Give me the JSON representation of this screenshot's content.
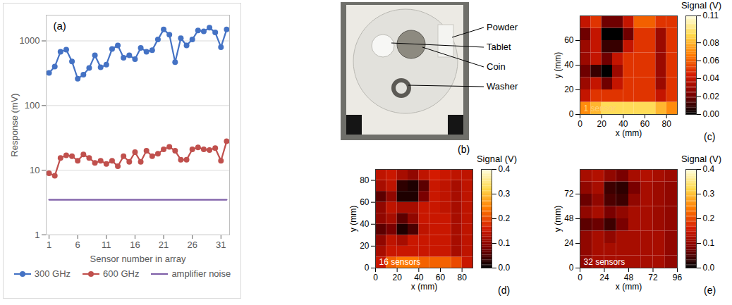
{
  "chart_data": [
    {
      "type": "line",
      "panel": "(a)",
      "xlabel": "Sensor number in array",
      "ylabel": "Response (mV)",
      "log": "y",
      "grid": true,
      "legend": "bottom",
      "x": [
        1,
        2,
        3,
        4,
        5,
        6,
        7,
        8,
        9,
        10,
        11,
        12,
        13,
        14,
        15,
        16,
        17,
        18,
        19,
        20,
        21,
        22,
        23,
        24,
        25,
        26,
        27,
        28,
        29,
        30,
        31,
        32
      ],
      "xlim": [
        0.5,
        32.5
      ],
      "xticks": [
        1,
        6,
        11,
        16,
        21,
        26,
        31
      ],
      "ylim": [
        1,
        2500
      ],
      "yticks": [
        1,
        10,
        100,
        1000
      ],
      "series": [
        {
          "name": "300 GHz",
          "color": "#4472c4",
          "marker": "circle",
          "line_style": "solid",
          "values": [
            320,
            400,
            680,
            730,
            480,
            260,
            300,
            380,
            600,
            390,
            430,
            750,
            850,
            550,
            600,
            520,
            780,
            680,
            720,
            1050,
            1500,
            1250,
            470,
            1100,
            850,
            1050,
            1450,
            1400,
            1600,
            1350,
            800,
            1500
          ]
        },
        {
          "name": "600 GHz",
          "color": "#c0504d",
          "marker": "circle",
          "line_style": "solid",
          "values": [
            9,
            8.2,
            15.5,
            17,
            16.5,
            14,
            17.5,
            15.5,
            13,
            14,
            12.5,
            14,
            11.5,
            16.5,
            13.5,
            19,
            13.5,
            20,
            16.5,
            18,
            21,
            23,
            20,
            14.5,
            14.5,
            21,
            22.5,
            21,
            20.5,
            22,
            14,
            28
          ]
        },
        {
          "name": "amplifier noise",
          "color": "#7f5fa8",
          "marker": "none",
          "line_style": "solid",
          "values": [
            3.5,
            3.5,
            3.5,
            3.5,
            3.5,
            3.5,
            3.5,
            3.5,
            3.5,
            3.5,
            3.5,
            3.5,
            3.5,
            3.5,
            3.5,
            3.5,
            3.5,
            3.5,
            3.5,
            3.5,
            3.5,
            3.5,
            3.5,
            3.5,
            3.5,
            3.5,
            3.5,
            3.5,
            3.5,
            3.5,
            3.5,
            3.5
          ]
        }
      ]
    },
    {
      "type": "heatmap",
      "panel": "(c)",
      "annotation": "1 sensor",
      "xlabel": "x (mm)",
      "ylabel": "y (mm)",
      "xlim": [
        0,
        90
      ],
      "xticks": [
        0,
        20,
        40,
        60,
        80
      ],
      "ylim": [
        0,
        80
      ],
      "yticks": [
        0,
        20,
        40,
        60
      ],
      "colors": [
        "#000000",
        "#7a0000",
        "#d41a00",
        "#ff7a00",
        "#ffd84a",
        "#ffffe0"
      ],
      "x": [
        5,
        15,
        25,
        35,
        45,
        55,
        65,
        75,
        85
      ],
      "y": [
        5,
        15,
        25,
        35,
        45,
        55,
        65,
        75
      ],
      "values": [
        [
          0.07,
          0.08,
          0.09,
          0.09,
          0.09,
          0.09,
          0.09,
          0.08,
          0.07
        ],
        [
          0.04,
          0.05,
          0.05,
          0.05,
          0.05,
          0.05,
          0.05,
          0.04,
          0.05
        ],
        [
          0.03,
          0.04,
          0.02,
          0.04,
          0.05,
          0.05,
          0.05,
          0.03,
          0.05
        ],
        [
          0.02,
          0.01,
          0.0,
          0.03,
          0.05,
          0.05,
          0.05,
          0.03,
          0.05
        ],
        [
          0.03,
          0.04,
          0.02,
          0.04,
          0.05,
          0.05,
          0.05,
          0.03,
          0.05
        ],
        [
          0.03,
          0.04,
          0.01,
          0.01,
          0.04,
          0.05,
          0.05,
          0.03,
          0.05
        ],
        [
          0.02,
          0.04,
          0.0,
          0.0,
          0.02,
          0.05,
          0.05,
          0.03,
          0.05
        ],
        [
          0.04,
          0.05,
          0.02,
          0.02,
          0.04,
          0.06,
          0.06,
          0.05,
          0.05
        ]
      ],
      "colorbar": {
        "title": "Signal (V)",
        "range": [
          0,
          0.11
        ],
        "ticks": [
          {
            "value": 0,
            "label": "0.00"
          },
          0.02,
          0.04,
          0.06,
          0.08,
          0.11
        ]
      }
    },
    {
      "type": "heatmap",
      "panel": "(d)",
      "annotation": "16 sensors",
      "xlabel": "x (mm)",
      "ylabel": "y (mm)",
      "xlim": [
        0,
        90
      ],
      "xticks": [
        0,
        20,
        40,
        60,
        80
      ],
      "ylim": [
        0,
        90
      ],
      "yticks": [
        0,
        20,
        40,
        60,
        80
      ],
      "colors": [
        "#000000",
        "#7a0000",
        "#d41a00",
        "#ff7a00",
        "#ffd84a",
        "#ffffe0"
      ],
      "x": [
        5,
        15,
        25,
        35,
        45,
        55,
        65,
        75,
        85
      ],
      "y": [
        5,
        15,
        25,
        35,
        45,
        55,
        65,
        75,
        85
      ],
      "values": [
        [
          0.15,
          0.22,
          0.24,
          0.24,
          0.22,
          0.22,
          0.22,
          0.2,
          0.15
        ],
        [
          0.12,
          0.15,
          0.15,
          0.15,
          0.15,
          0.15,
          0.15,
          0.12,
          0.14
        ],
        [
          0.1,
          0.14,
          0.12,
          0.15,
          0.15,
          0.15,
          0.15,
          0.12,
          0.14
        ],
        [
          0.06,
          0.08,
          0.02,
          0.05,
          0.14,
          0.15,
          0.15,
          0.12,
          0.14
        ],
        [
          0.1,
          0.12,
          0.06,
          0.1,
          0.15,
          0.15,
          0.15,
          0.12,
          0.14
        ],
        [
          0.1,
          0.14,
          0.12,
          0.12,
          0.15,
          0.15,
          0.14,
          0.12,
          0.14
        ],
        [
          0.06,
          0.1,
          0.02,
          0.02,
          0.08,
          0.15,
          0.14,
          0.12,
          0.14
        ],
        [
          0.12,
          0.14,
          0.03,
          0.02,
          0.06,
          0.15,
          0.14,
          0.12,
          0.14
        ],
        [
          0.14,
          0.15,
          0.12,
          0.1,
          0.14,
          0.16,
          0.15,
          0.14,
          0.14
        ]
      ],
      "colorbar": {
        "title": "Signal (V)",
        "range": [
          0,
          0.4
        ],
        "ticks": [
          {
            "value": 0,
            "label": "0.0"
          },
          0.1,
          0.2,
          0.3,
          0.4
        ]
      }
    },
    {
      "type": "heatmap",
      "panel": "(e)",
      "annotation": "32 sensors",
      "xlabel": "x (mm)",
      "ylabel": "y (mm)",
      "xlim": [
        0,
        96
      ],
      "xticks": [
        0,
        24,
        48,
        72,
        96
      ],
      "ylim": [
        0,
        96
      ],
      "yticks": [
        0,
        24,
        48,
        72
      ],
      "colors": [
        "#000000",
        "#7a0000",
        "#d41a00",
        "#ff7a00",
        "#ffd84a",
        "#ffffe0"
      ],
      "x": [
        6,
        18,
        30,
        42,
        54,
        66,
        78,
        90
      ],
      "y": [
        6,
        18,
        30,
        42,
        54,
        66,
        78,
        90
      ],
      "values": [
        [
          0.1,
          0.12,
          0.12,
          0.12,
          0.12,
          0.12,
          0.12,
          0.1
        ],
        [
          0.1,
          0.12,
          0.12,
          0.12,
          0.12,
          0.12,
          0.12,
          0.1
        ],
        [
          0.1,
          0.12,
          0.1,
          0.12,
          0.12,
          0.12,
          0.12,
          0.1
        ],
        [
          0.06,
          0.07,
          0.04,
          0.08,
          0.12,
          0.12,
          0.11,
          0.1
        ],
        [
          0.1,
          0.12,
          0.08,
          0.1,
          0.12,
          0.12,
          0.11,
          0.1
        ],
        [
          0.07,
          0.1,
          0.05,
          0.04,
          0.1,
          0.12,
          0.11,
          0.1
        ],
        [
          0.1,
          0.12,
          0.04,
          0.03,
          0.08,
          0.12,
          0.11,
          0.1
        ],
        [
          0.12,
          0.13,
          0.1,
          0.08,
          0.12,
          0.13,
          0.12,
          0.11
        ]
      ],
      "colorbar": {
        "title": "Signal (V)",
        "range": [
          0,
          0.4
        ],
        "ticks": [
          {
            "value": 0,
            "label": "0.0"
          },
          0.1,
          0.2,
          0.3,
          0.4
        ]
      }
    }
  ],
  "photo": {
    "panel": "(b)",
    "labels": [
      "Powder",
      "Tablet",
      "Coin",
      "Washer"
    ]
  }
}
